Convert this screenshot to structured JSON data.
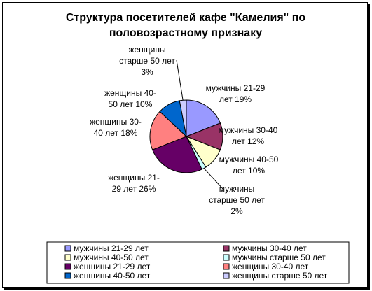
{
  "chart_data": {
    "type": "pie",
    "title": [
      "Структура посетителей кафе \"Камелия\" по",
      "половозрастному признаку"
    ],
    "legend_position": "bottom",
    "slices": [
      {
        "name": "мужчины 21-29 лет",
        "value": 19,
        "color": "#9999ff",
        "label_lines": [
          "мужчины 21-29",
          "лет 19%"
        ]
      },
      {
        "name": "мужчины 30-40 лет",
        "value": 12,
        "color": "#993366",
        "label_lines": [
          "мужчины 30-40",
          "лет 12%"
        ]
      },
      {
        "name": "мужчины 40-50 лет",
        "value": 10,
        "color": "#ffffcc",
        "label_lines": [
          "мужчины 40-50",
          "лет 10%"
        ]
      },
      {
        "name": "мужчины старше 50 лет",
        "value": 2,
        "color": "#ccffff",
        "label_lines": [
          "мужчины",
          "старше 50 лет",
          "2%"
        ]
      },
      {
        "name": "женщины 21-29 лет",
        "value": 26,
        "color": "#660066",
        "label_lines": [
          "женщины 21-",
          "29 лет 26%"
        ]
      },
      {
        "name": "женщины 30-40 лет",
        "value": 18,
        "color": "#ff8080",
        "label_lines": [
          "женщины 30-",
          "40 лет 18%"
        ]
      },
      {
        "name": "женщины 40-50 лет",
        "value": 10,
        "color": "#0066cc",
        "label_lines": [
          "женщины 40-",
          "50 лет 10%"
        ]
      },
      {
        "name": "женщины старше 50 лет",
        "value": 3,
        "color": "#ccccff",
        "label_lines": [
          "женщины",
          "старше 50 лет",
          "3%"
        ]
      }
    ]
  }
}
